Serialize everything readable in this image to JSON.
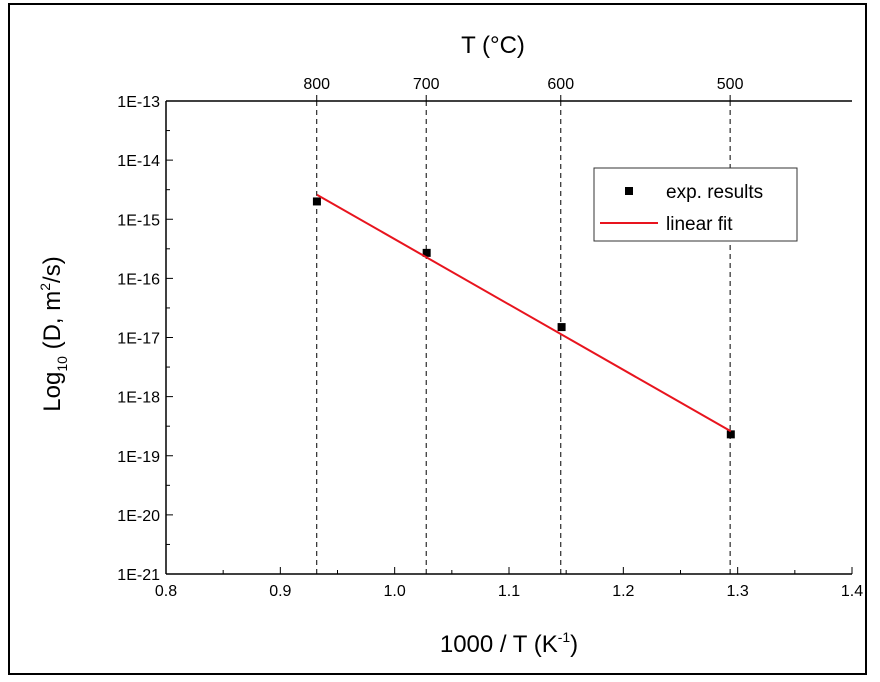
{
  "chart_data": {
    "type": "scatter",
    "x_axis": {
      "label_main": "1000 / T (K",
      "label_sup": "-1",
      "label_end": ")",
      "range": [
        0.8,
        1.4
      ],
      "ticks": [
        "0.8",
        "0.9",
        "1.0",
        "1.1",
        "1.2",
        "1.3",
        "1.4"
      ]
    },
    "y_axis": {
      "label_main": "Log",
      "label_sub": "10",
      "label_mid": " (D, m",
      "label_sup": "2",
      "label_end": "/s)",
      "scale": "log",
      "range": [
        1e-21,
        1e-13
      ],
      "ticks": [
        "1E-21",
        "1E-20",
        "1E-19",
        "1E-18",
        "1E-17",
        "1E-16",
        "1E-15",
        "1E-14",
        "1E-13"
      ]
    },
    "top_axis": {
      "label": "T (°C)",
      "tick_labels": [
        "800",
        "700",
        "600",
        "500"
      ],
      "tick_values": [
        800,
        700,
        600,
        500
      ],
      "dashed_reference_lines": true
    },
    "series": [
      {
        "name": "exp. results",
        "kind": "scatter",
        "marker": "square",
        "color": "#000000",
        "x": [
          0.932,
          1.028,
          1.146,
          1.294
        ],
        "y": [
          2e-15,
          2.7e-16,
          1.5e-17,
          2.3e-19
        ]
      },
      {
        "name": "linear fit",
        "kind": "line",
        "color": "#e8141e",
        "x": [
          0.932,
          1.294
        ],
        "y": [
          2.6e-15,
          2.6e-19
        ]
      }
    ],
    "legend": {
      "position": "top-right",
      "items": [
        "exp. results",
        "linear fit"
      ]
    },
    "grid": false
  }
}
